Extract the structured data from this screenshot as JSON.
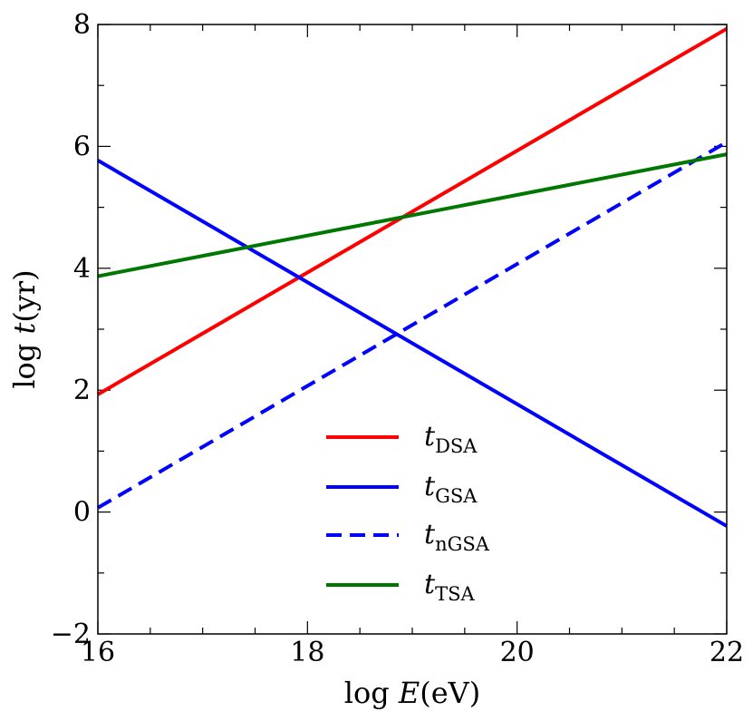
{
  "chart_data": {
    "type": "line",
    "title": "",
    "xlabel": {
      "prefix": "log ",
      "var": "E",
      "unit": "(eV)"
    },
    "ylabel": {
      "prefix": "log ",
      "var": "t",
      "unit": "(yr)"
    },
    "xlim": [
      16,
      22
    ],
    "ylim": [
      -2,
      8
    ],
    "xticks_major": [
      16,
      18,
      20,
      22
    ],
    "xtick_labels": [
      "16",
      "18",
      "20",
      "22"
    ],
    "xticks_minor_step": 0.5,
    "yticks_major": [
      -2,
      0,
      2,
      4,
      6,
      8
    ],
    "ytick_labels": [
      "−2",
      "0",
      "2",
      "4",
      "6",
      "8"
    ],
    "yticks_minor_step": 1,
    "grid": false,
    "legend_position": "lower-center",
    "series": [
      {
        "name": "t_DSA",
        "label_main": "t",
        "label_sub": "DSA",
        "color": "#ff0000",
        "dash": "solid",
        "x": [
          16,
          22
        ],
        "y": [
          1.93,
          7.93
        ]
      },
      {
        "name": "t_GSA",
        "label_main": "t",
        "label_sub": "GSA",
        "color": "#0000ff",
        "dash": "solid",
        "x": [
          16,
          22
        ],
        "y": [
          5.77,
          -0.23
        ]
      },
      {
        "name": "t_nGSA",
        "label_main": "t",
        "label_sub": "nGSA",
        "color": "#0000ff",
        "dash": "dashed",
        "x": [
          16,
          22
        ],
        "y": [
          0.07,
          6.07
        ]
      },
      {
        "name": "t_TSA",
        "label_main": "t",
        "label_sub": "TSA",
        "color": "#007700",
        "dash": "solid",
        "x": [
          16,
          22
        ],
        "y": [
          3.87,
          5.87
        ]
      }
    ]
  }
}
